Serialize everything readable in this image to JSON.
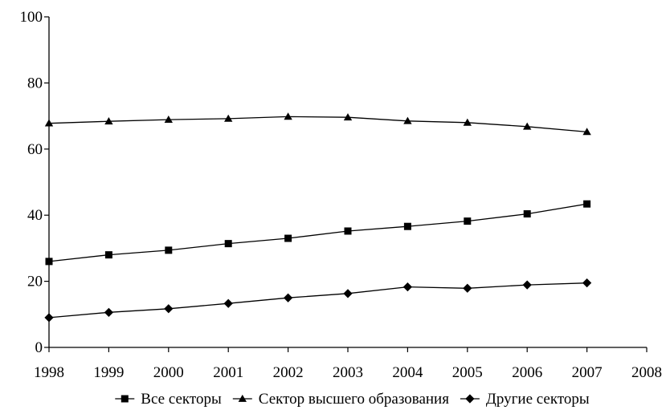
{
  "chart_data": {
    "type": "line",
    "title": "",
    "xlabel": "",
    "ylabel": "",
    "xlim": [
      1998,
      2008
    ],
    "ylim": [
      0,
      100
    ],
    "x_ticks": [
      1998,
      1999,
      2000,
      2001,
      2002,
      2003,
      2004,
      2005,
      2006,
      2007,
      2008
    ],
    "y_ticks": [
      0,
      20,
      40,
      60,
      80,
      100
    ],
    "grid": false,
    "legend_position": "bottom",
    "x": [
      1998,
      1999,
      2000,
      2001,
      2002,
      2003,
      2004,
      2005,
      2006,
      2007
    ],
    "series": [
      {
        "name": "Все секторы",
        "marker": "square",
        "color": "#000000",
        "values": [
          26,
          28,
          29.4,
          31.4,
          33,
          35.2,
          36.6,
          38.2,
          40.4,
          43.4
        ]
      },
      {
        "name": "Сектор высшего образования",
        "marker": "triangle",
        "color": "#000000",
        "values": [
          67.8,
          68.4,
          68.9,
          69.2,
          69.8,
          69.6,
          68.5,
          68,
          66.8,
          65.2
        ]
      },
      {
        "name": "Другие секторы",
        "marker": "diamond",
        "color": "#000000",
        "values": [
          9,
          10.6,
          11.7,
          13.3,
          15,
          16.3,
          18.3,
          17.9,
          18.9,
          19.5
        ]
      }
    ]
  }
}
